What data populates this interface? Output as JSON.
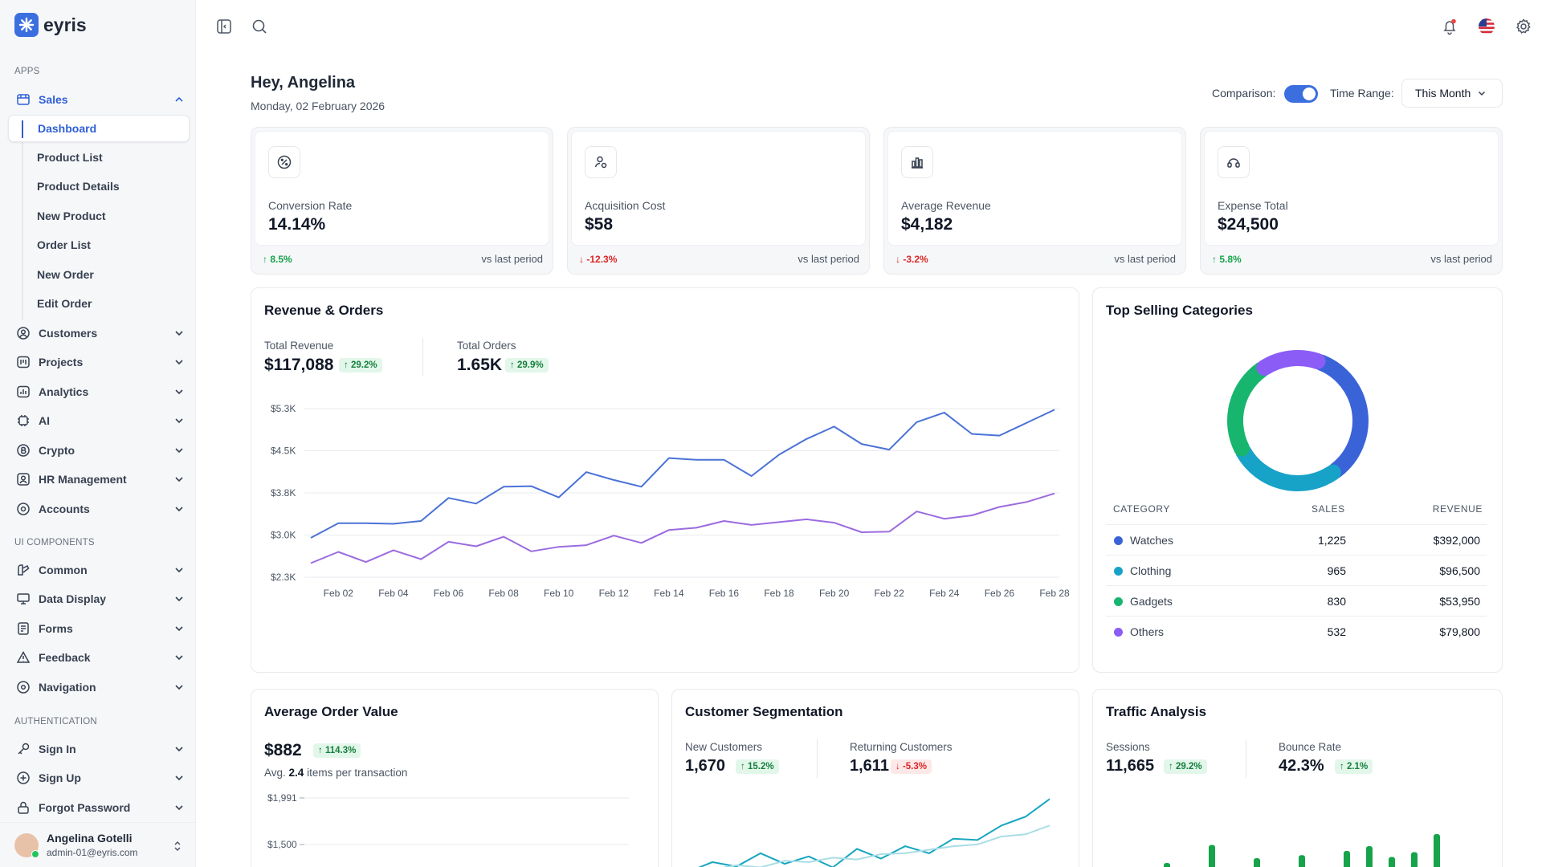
{
  "brand": {
    "name": "eyris"
  },
  "sidebar": {
    "apps_label": "APPS",
    "sales": {
      "label": "Sales"
    },
    "sales_sub": [
      {
        "label": "Dashboard"
      },
      {
        "label": "Product List"
      },
      {
        "label": "Product Details"
      },
      {
        "label": "New Product"
      },
      {
        "label": "Order List"
      },
      {
        "label": "New Order"
      },
      {
        "label": "Edit Order"
      }
    ],
    "apps": [
      {
        "label": "Customers",
        "icon": "users-icon"
      },
      {
        "label": "Projects",
        "icon": "projects-icon"
      },
      {
        "label": "Analytics",
        "icon": "analytics-icon"
      },
      {
        "label": "AI",
        "icon": "chip-icon"
      },
      {
        "label": "Crypto",
        "icon": "bitcoin-icon"
      },
      {
        "label": "HR Management",
        "icon": "user-icon"
      },
      {
        "label": "Accounts",
        "icon": "account-icon"
      }
    ],
    "ui_label": "UI COMPONENTS",
    "ui": [
      {
        "label": "Common",
        "icon": "brush-icon"
      },
      {
        "label": "Data Display",
        "icon": "monitor-icon"
      },
      {
        "label": "Forms",
        "icon": "form-icon"
      },
      {
        "label": "Feedback",
        "icon": "warning-icon"
      },
      {
        "label": "Navigation",
        "icon": "location-icon"
      }
    ],
    "auth_label": "AUTHENTICATION",
    "auth": [
      {
        "label": "Sign In",
        "icon": "key-icon"
      },
      {
        "label": "Sign Up",
        "icon": "plus-circle-icon"
      },
      {
        "label": "Forgot Password",
        "icon": "lock-icon"
      }
    ],
    "user": {
      "name": "Angelina Gotelli",
      "email": "admin-01@eyris.com"
    }
  },
  "header": {
    "greeting": "Hey, Angelina",
    "date": "Monday, 02 February 2026",
    "comparison_label": "Comparison:",
    "comparison_on": true,
    "time_range_label": "Time Range:",
    "time_range_value": "This Month"
  },
  "stats": [
    {
      "title": "Conversion Rate",
      "value": "14.14%",
      "delta": "8.5%",
      "direction": "up",
      "vs": "vs last period",
      "icon": "percent-icon"
    },
    {
      "title": "Acquisition Cost",
      "value": "$58",
      "delta": "-12.3%",
      "direction": "down",
      "vs": "vs last period",
      "icon": "user-acquisition-icon"
    },
    {
      "title": "Average Revenue",
      "value": "$4,182",
      "delta": "-3.2%",
      "direction": "down",
      "vs": "vs last period",
      "icon": "bar-chart-icon"
    },
    {
      "title": "Expense Total",
      "value": "$24,500",
      "delta": "5.8%",
      "direction": "up",
      "vs": "vs last period",
      "icon": "wallet-icon"
    }
  ],
  "revenue_orders": {
    "title": "Revenue & Orders",
    "total_revenue_label": "Total Revenue",
    "total_revenue": "$117,088",
    "total_revenue_delta": "29.2%",
    "total_orders_label": "Total Orders",
    "total_orders": "1.65K",
    "total_orders_delta": "29.9%"
  },
  "top_categories": {
    "title": "Top Selling Categories",
    "columns": [
      "CATEGORY",
      "SALES",
      "REVENUE"
    ],
    "rows": [
      {
        "category": "Watches",
        "sales": "1,225",
        "revenue": "$392,000",
        "color": "#3b63d8"
      },
      {
        "category": "Clothing",
        "sales": "965",
        "revenue": "$96,500",
        "color": "#17a2c7"
      },
      {
        "category": "Gadgets",
        "sales": "830",
        "revenue": "$53,950",
        "color": "#18b56f"
      },
      {
        "category": "Others",
        "sales": "532",
        "revenue": "$79,800",
        "color": "#8b5cf6"
      }
    ]
  },
  "avg_order": {
    "title": "Average Order Value",
    "value": "$882",
    "delta": "114.3%",
    "sub_prefix": "Avg.",
    "sub_value": "2.4",
    "sub_suffix": "items per transaction"
  },
  "segmentation": {
    "title": "Customer Segmentation",
    "new_label": "New Customers",
    "new_value": "1,670",
    "new_delta": "15.2%",
    "ret_label": "Returning Customers",
    "ret_value": "1,611",
    "ret_delta": "-5.3%"
  },
  "traffic": {
    "title": "Traffic Analysis",
    "sessions_label": "Sessions",
    "sessions_value": "11,665",
    "sessions_delta": "29.2%",
    "bounce_label": "Bounce Rate",
    "bounce_value": "42.3%",
    "bounce_delta": "2.1%"
  },
  "chart_data": [
    {
      "type": "line",
      "title": "Revenue & Orders",
      "x": [
        "Feb 01",
        "Feb 02",
        "Feb 03",
        "Feb 04",
        "Feb 05",
        "Feb 06",
        "Feb 07",
        "Feb 08",
        "Feb 09",
        "Feb 10",
        "Feb 11",
        "Feb 12",
        "Feb 13",
        "Feb 14",
        "Feb 15",
        "Feb 16",
        "Feb 17",
        "Feb 18",
        "Feb 19",
        "Feb 20",
        "Feb 21",
        "Feb 22",
        "Feb 23",
        "Feb 24",
        "Feb 25",
        "Feb 26",
        "Feb 27",
        "Feb 28"
      ],
      "x_tick_labels": [
        "Feb 02",
        "Feb 04",
        "Feb 06",
        "Feb 08",
        "Feb 10",
        "Feb 12",
        "Feb 14",
        "Feb 16",
        "Feb 18",
        "Feb 20",
        "Feb 22",
        "Feb 24",
        "Feb 26",
        "Feb 28"
      ],
      "y_tick_labels": [
        "$5.3K",
        "$4.5K",
        "$3.8K",
        "$3.0K",
        "$2.3K"
      ],
      "ylim": [
        2.3,
        5.3
      ],
      "grid": true,
      "series": [
        {
          "color": "#4a72d6",
          "values": [
            3.0,
            3.26,
            3.26,
            3.25,
            3.3,
            3.71,
            3.61,
            3.91,
            3.92,
            3.72,
            4.17,
            4.03,
            3.91,
            4.42,
            4.39,
            4.39,
            4.1,
            4.48,
            4.76,
            4.98,
            4.67,
            4.57,
            5.06,
            5.23,
            4.85,
            4.82,
            5.05,
            5.28
          ]
        },
        {
          "color": "#9b6be0",
          "values": [
            2.55,
            2.75,
            2.57,
            2.78,
            2.62,
            2.93,
            2.85,
            3.02,
            2.76,
            2.84,
            2.87,
            3.04,
            2.91,
            3.14,
            3.18,
            3.3,
            3.23,
            3.28,
            3.33,
            3.27,
            3.1,
            3.11,
            3.47,
            3.34,
            3.4,
            3.55,
            3.64,
            3.79
          ]
        }
      ]
    },
    {
      "type": "pie",
      "title": "Top Selling Categories",
      "categories": [
        "Watches",
        "Clothing",
        "Gadgets",
        "Others"
      ],
      "values": [
        1225,
        965,
        830,
        532
      ],
      "colors": [
        "#3b63d8",
        "#17a2c7",
        "#18b56f",
        "#8b5cf6"
      ]
    },
    {
      "type": "line",
      "title": "Average Order Value",
      "y_tick_labels": [
        "$1,991",
        "$1,500"
      ],
      "values": [],
      "grid": true
    },
    {
      "type": "line",
      "title": "Customer Segmentation",
      "series": [
        {
          "color": "#18a6c0",
          "values": [
            0.2,
            0.42,
            0.32,
            0.62,
            0.38,
            0.55,
            0.3,
            0.72,
            0.5,
            0.78,
            0.62,
            0.95,
            0.92,
            1.25,
            1.45,
            1.85
          ]
        },
        {
          "color": "#a9dde6",
          "values": [
            0.15,
            0.25,
            0.35,
            0.3,
            0.45,
            0.42,
            0.52,
            0.48,
            0.6,
            0.62,
            0.7,
            0.78,
            0.82,
            1.0,
            1.05,
            1.25
          ]
        }
      ]
    },
    {
      "type": "bar",
      "title": "Traffic Analysis",
      "values": [
        18,
        32,
        20,
        62,
        24,
        40,
        14,
        45,
        16,
        52,
        60,
        42,
        50,
        80
      ],
      "color": "#16a34a"
    }
  ]
}
